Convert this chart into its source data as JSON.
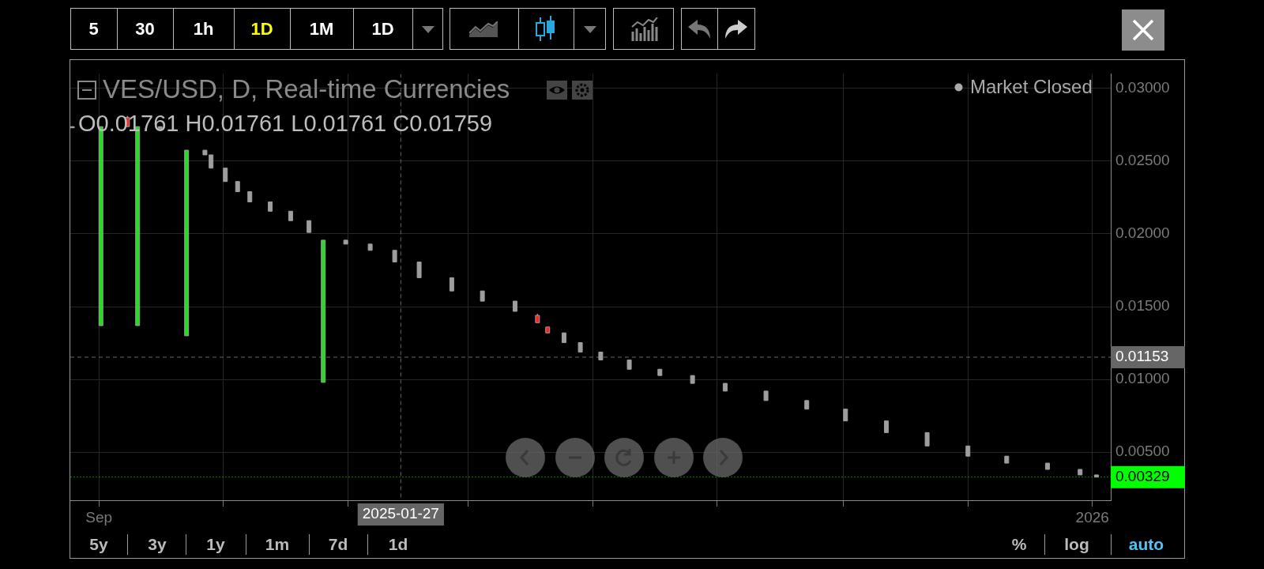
{
  "chart_data": {
    "type": "candlestick",
    "title": "VES/USD, D, Real-time Currencies",
    "subtitle": "O0.01761 H0.01761 L0.01761 C0.01759",
    "annotations": [
      "Market Closed",
      "5",
      "30",
      "1h",
      "1D",
      "1M",
      "1D",
      "5y",
      "3y",
      "1y",
      "1m",
      "7d",
      "1d",
      "%",
      "log",
      "auto"
    ],
    "x": [
      "2024-08-19",
      "2024-09-02",
      "2024-09-15",
      "2024-09-20",
      "2024-10-01",
      "2024-10-14",
      "2024-10-23",
      "2024-10-26",
      "2024-11-02",
      "2024-11-08",
      "2024-11-14",
      "2024-11-24",
      "2024-12-04",
      "2024-12-13",
      "2024-12-20",
      "2024-12-31",
      "2025-01-12",
      "2025-01-24",
      "2025-02-05",
      "2025-02-21",
      "2025-03-08",
      "2025-03-24",
      "2025-04-04",
      "2025-04-09",
      "2025-04-17",
      "2025-04-25",
      "2025-05-05",
      "2025-05-19",
      "2025-06-03",
      "2025-06-19",
      "2025-07-05",
      "2025-07-25",
      "2025-08-14",
      "2025-09-02",
      "2025-09-22",
      "2025-10-12",
      "2025-11-01",
      "2025-11-20",
      "2025-12-10",
      "2025-12-26",
      "2026-01-03"
    ],
    "ohlc": [
      [
        0.02737,
        0.0274,
        0.0273,
        0.02737
      ],
      [
        0.0137,
        0.02737,
        0.0137,
        0.02737
      ],
      [
        0.028,
        0.0281,
        0.02737,
        0.02737
      ],
      [
        0.0137,
        0.02737,
        0.0137,
        0.02737
      ],
      [
        0.02737,
        0.02737,
        0.0272,
        0.0272
      ],
      [
        0.013,
        0.02575,
        0.013,
        0.02575
      ],
      [
        0.02575,
        0.02575,
        0.02543,
        0.02543
      ],
      [
        0.02543,
        0.02543,
        0.02452,
        0.02452
      ],
      [
        0.02452,
        0.02452,
        0.0236,
        0.0236
      ],
      [
        0.0236,
        0.0236,
        0.0229,
        0.0229
      ],
      [
        0.0229,
        0.0229,
        0.0222,
        0.0222
      ],
      [
        0.0222,
        0.0222,
        0.02156,
        0.02156
      ],
      [
        0.02156,
        0.02156,
        0.02091,
        0.02091
      ],
      [
        0.02091,
        0.02091,
        0.0201,
        0.0201
      ],
      [
        0.0098,
        0.01957,
        0.0098,
        0.01957
      ],
      [
        0.01957,
        0.01957,
        0.0193,
        0.0193
      ],
      [
        0.0193,
        0.0193,
        0.01887,
        0.01887
      ],
      [
        0.01887,
        0.01887,
        0.01807,
        0.01807
      ],
      [
        0.01807,
        0.01807,
        0.01699,
        0.01699
      ],
      [
        0.01699,
        0.01699,
        0.01608,
        0.01608
      ],
      [
        0.01608,
        0.01608,
        0.01538,
        0.01538
      ],
      [
        0.01538,
        0.01538,
        0.01468,
        0.01468
      ],
      [
        0.0144,
        0.0145,
        0.0139,
        0.0139
      ],
      [
        0.0136,
        0.0136,
        0.0132,
        0.0132
      ],
      [
        0.0132,
        0.0132,
        0.01253,
        0.01253
      ],
      [
        0.01253,
        0.01253,
        0.01188,
        0.01188
      ],
      [
        0.01188,
        0.01188,
        0.01134,
        0.01134
      ],
      [
        0.01134,
        0.01134,
        0.0107,
        0.0107
      ],
      [
        0.0107,
        0.0107,
        0.01027,
        0.01027
      ],
      [
        0.01027,
        0.01027,
        0.00973,
        0.00973
      ],
      [
        0.00973,
        0.00973,
        0.0092,
        0.0092
      ],
      [
        0.0092,
        0.0092,
        0.00855,
        0.00855
      ],
      [
        0.00855,
        0.00855,
        0.00796,
        0.00796
      ],
      [
        0.00796,
        0.00796,
        0.00715,
        0.00715
      ],
      [
        0.00715,
        0.00715,
        0.00635,
        0.00635
      ],
      [
        0.00635,
        0.00635,
        0.00543,
        0.00543
      ],
      [
        0.00543,
        0.00543,
        0.00473,
        0.00473
      ],
      [
        0.00473,
        0.00473,
        0.00425,
        0.00425
      ],
      [
        0.00425,
        0.00425,
        0.00382,
        0.00382
      ],
      [
        0.00382,
        0.00382,
        0.00344,
        0.00344
      ],
      [
        0.00344,
        0.00344,
        0.00329,
        0.00329
      ]
    ],
    "color": "#9e9e9e",
    "colors": [
      "#9e9e9e",
      "#22dd22",
      "#ff2222",
      "#22dd22",
      "#9e9e9e",
      "#22dd22",
      "#9e9e9e",
      "#9e9e9e",
      "#9e9e9e",
      "#9e9e9e",
      "#9e9e9e",
      "#9e9e9e",
      "#9e9e9e",
      "#9e9e9e",
      "#22dd22",
      "#9e9e9e",
      "#9e9e9e",
      "#9e9e9e",
      "#9e9e9e",
      "#9e9e9e",
      "#9e9e9e",
      "#9e9e9e",
      "#ff2222",
      "#ff2222",
      "#9e9e9e",
      "#9e9e9e",
      "#9e9e9e",
      "#9e9e9e",
      "#9e9e9e",
      "#9e9e9e",
      "#9e9e9e",
      "#9e9e9e",
      "#9e9e9e",
      "#9e9e9e",
      "#9e9e9e",
      "#9e9e9e",
      "#9e9e9e",
      "#9e9e9e",
      "#9e9e9e",
      "#9e9e9e",
      "#9e9e9e"
    ],
    "xlim": [
      "2024-08-18",
      "2026-01-10"
    ],
    "xticks": [
      {
        "value": "2024-09-01",
        "label": "Sep"
      },
      {
        "value": "2024-11-01",
        "label": null
      },
      {
        "value": "2025-01-01",
        "label": null
      },
      {
        "value": "2025-03-01",
        "label": null
      },
      {
        "value": "2025-05-01",
        "label": null
      },
      {
        "value": "2025-07-01",
        "label": null
      },
      {
        "value": "2025-09-01",
        "label": null
      },
      {
        "value": "2025-11-01",
        "label": null
      },
      {
        "value": "2026-01-01",
        "label": "2026"
      }
    ],
    "ylim": [
      0.0017,
      0.031
    ],
    "yticks": [
      {
        "value": 0.005,
        "label": "0.00500"
      },
      {
        "value": 0.01,
        "label": "0.01000"
      },
      {
        "value": 0.015,
        "label": "0.01500"
      },
      {
        "value": 0.02,
        "label": "0.02000"
      },
      {
        "value": 0.025,
        "label": "0.02500"
      },
      {
        "value": 0.03,
        "label": "0.03000"
      }
    ],
    "grid": true,
    "ref_lines": [
      {
        "axis": "y",
        "value": 0.01153,
        "label": "0.01153",
        "color": "#666666",
        "line_style": "dashed"
      },
      {
        "axis": "y",
        "value": 0.00329,
        "label": "0.00329",
        "color": "#00ff00",
        "line_style": "dotted"
      },
      {
        "axis": "x",
        "value": "2025-01-27",
        "label": "2025-01-27",
        "color": "#666666",
        "line_style": "dashed"
      }
    ]
  }
}
